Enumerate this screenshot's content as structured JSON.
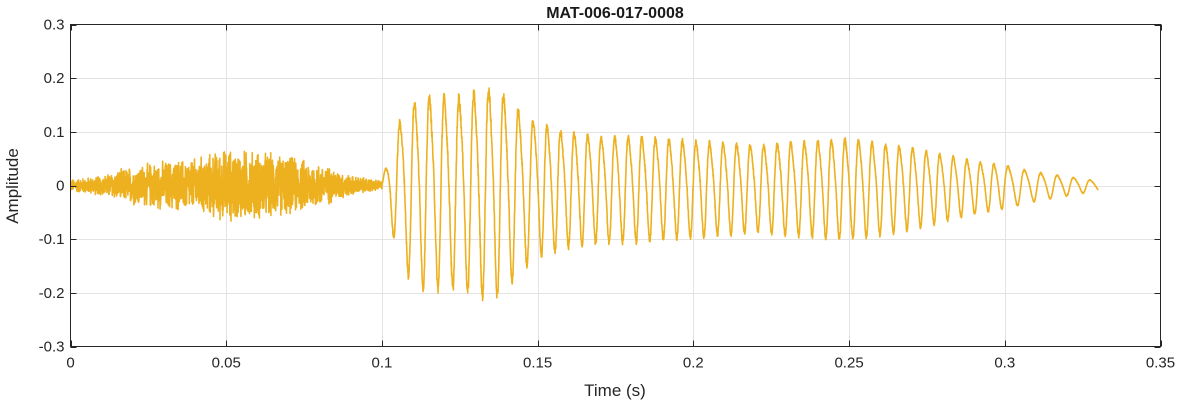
{
  "chart_data": {
    "type": "line",
    "title": "MAT-006-017-0008",
    "xlabel": "Time (s)",
    "ylabel": "Amplitude",
    "xlim": [
      0,
      0.35
    ],
    "ylim": [
      -0.3,
      0.3
    ],
    "xticks": [
      0,
      0.05,
      0.1,
      0.15,
      0.2,
      0.25,
      0.3,
      0.35
    ],
    "xtick_labels": [
      "0",
      "0.05",
      "0.1",
      "0.15",
      "0.2",
      "0.25",
      "0.3",
      "0.35"
    ],
    "yticks": [
      -0.3,
      -0.2,
      -0.1,
      0,
      0.1,
      0.2,
      0.3
    ],
    "ytick_labels": [
      "-0.3",
      "-0.2",
      "-0.1",
      "0",
      "0.1",
      "0.2",
      "0.3"
    ],
    "grid": true,
    "series": [
      {
        "color": "#EDB120",
        "duration": 0.33,
        "envelope": {
          "t": [
            0,
            0.01,
            0.02,
            0.03,
            0.04,
            0.05,
            0.06,
            0.07,
            0.08,
            0.09,
            0.1,
            0.102,
            0.106,
            0.11,
            0.115,
            0.12,
            0.125,
            0.13,
            0.135,
            0.14,
            0.145,
            0.15,
            0.16,
            0.17,
            0.18,
            0.19,
            0.2,
            0.21,
            0.22,
            0.23,
            0.24,
            0.25,
            0.26,
            0.27,
            0.28,
            0.29,
            0.3,
            0.31,
            0.32,
            0.33
          ],
          "amp": [
            0.012,
            0.02,
            0.04,
            0.05,
            0.055,
            0.075,
            0.07,
            0.06,
            0.045,
            0.02,
            0.01,
            0.06,
            0.15,
            0.19,
            0.2,
            0.2,
            0.2,
            0.21,
            0.22,
            0.2,
            0.16,
            0.14,
            0.12,
            0.11,
            0.11,
            0.105,
            0.1,
            0.095,
            0.09,
            0.095,
            0.1,
            0.105,
            0.095,
            0.085,
            0.07,
            0.055,
            0.045,
            0.03,
            0.02,
            0.01
          ]
        }
      }
    ]
  }
}
